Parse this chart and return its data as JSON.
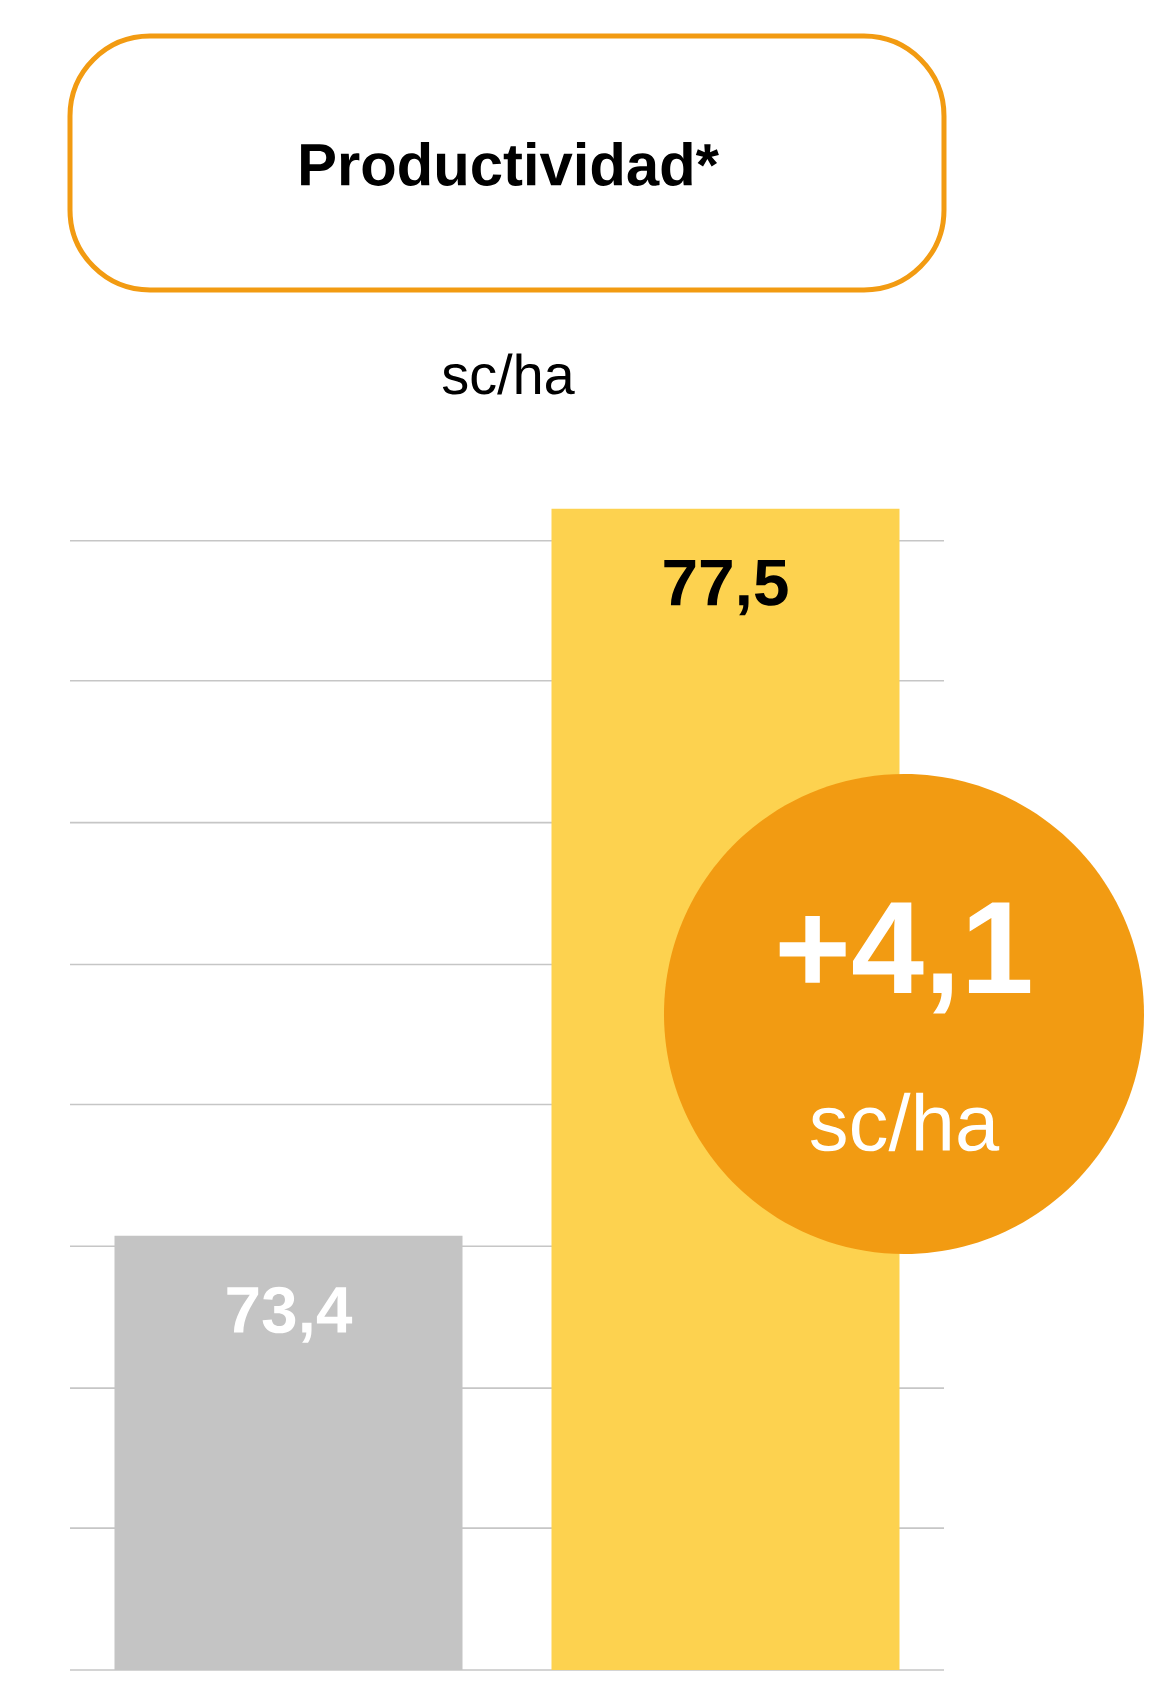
{
  "chart_data": {
    "type": "bar",
    "title": "Productividad*",
    "subtitle": "sc/ha",
    "categories": [
      null,
      null
    ],
    "values": [
      73.4,
      77.5
    ],
    "value_labels": [
      "73,4",
      "77,5"
    ],
    "colors": [
      "#c4c4c4",
      "#fdd24f"
    ],
    "ylim": [
      70.95,
      77.55
    ],
    "yticks": [
      {
        "value": 70.95,
        "label": null
      },
      {
        "value": 71.75,
        "label": null
      },
      {
        "value": 72.54,
        "label": null
      },
      {
        "value": 73.34,
        "label": null
      },
      {
        "value": 74.14,
        "label": null
      },
      {
        "value": 74.93,
        "label": null
      },
      {
        "value": 75.73,
        "label": null
      },
      {
        "value": 76.53,
        "label": null
      },
      {
        "value": 77.32,
        "label": null
      }
    ],
    "grid": "y",
    "annotations": [
      "+4,1",
      "sc/ha"
    ]
  }
}
